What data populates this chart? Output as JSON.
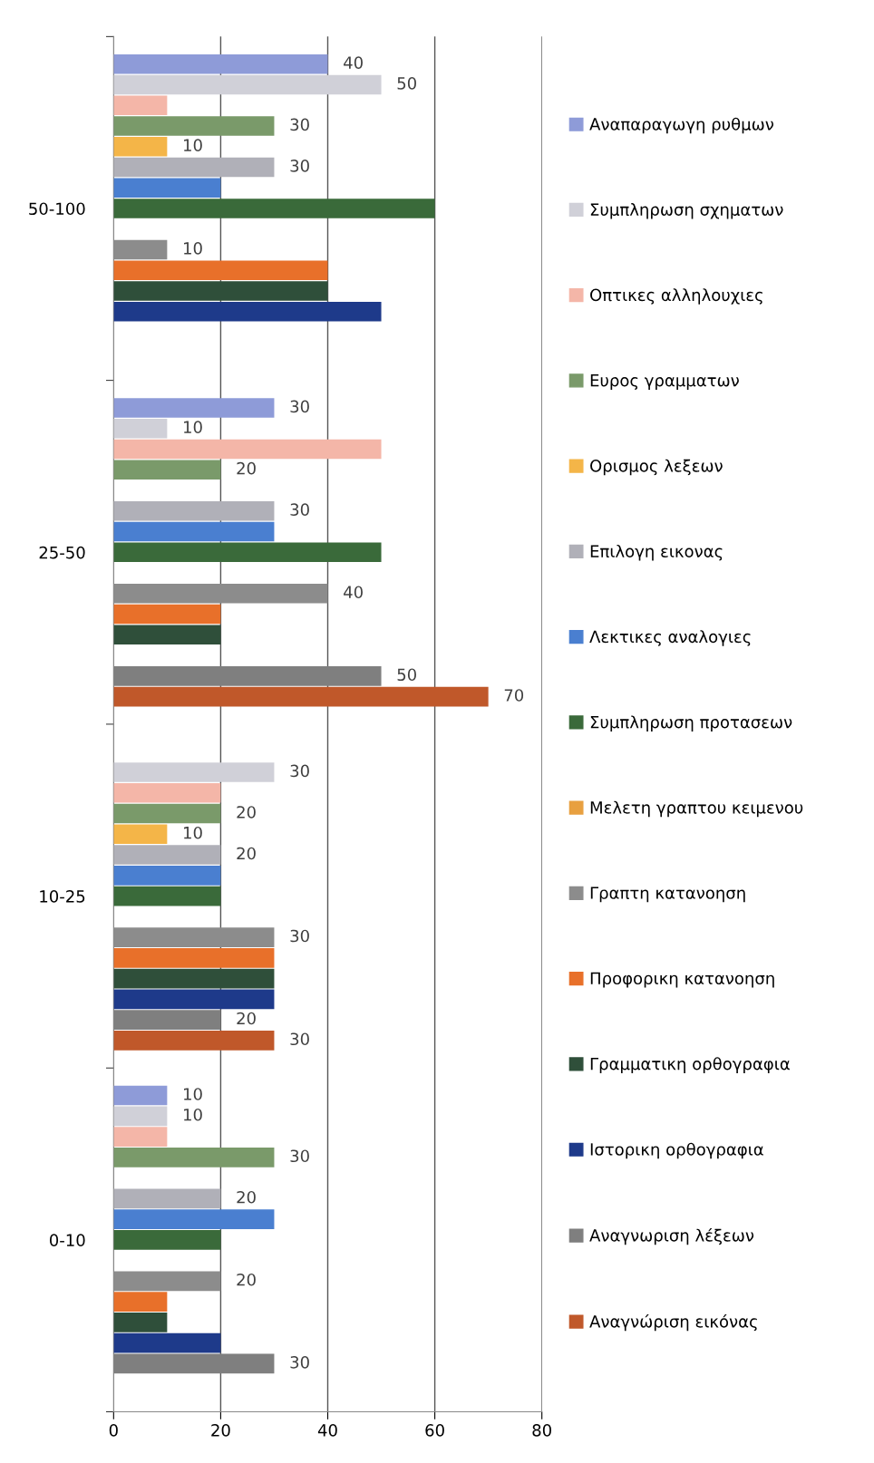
{
  "chart_data": {
    "type": "bar",
    "orientation": "horizontal",
    "categories": [
      "50-100",
      "25-50",
      "10-25",
      "0-10"
    ],
    "xlim": [
      0,
      80
    ],
    "xticks": [
      0,
      20,
      40,
      60,
      80
    ],
    "grid": "x",
    "legend": "right",
    "series": [
      {
        "name": "Αναπαραγωγη ρυθμων",
        "color": "#8e9bd8",
        "values": [
          40,
          30,
          null,
          10
        ],
        "value_labels": [
          "40",
          "30",
          null,
          "10"
        ]
      },
      {
        "name": "Συμπληρωση σχηματων",
        "color": "#d0d0d8",
        "values": [
          50,
          10,
          30,
          10
        ],
        "value_labels": [
          "50",
          "10",
          "30",
          "10"
        ]
      },
      {
        "name": "Οπτικες αλληλουχιες",
        "color": "#f4b6a8",
        "values": [
          10,
          50,
          20,
          10
        ],
        "value_labels": [
          null,
          null,
          null,
          null
        ]
      },
      {
        "name": "Ευρος γραμματων",
        "color": "#7a9a6a",
        "values": [
          30,
          20,
          20,
          30
        ],
        "value_labels": [
          "30",
          "20",
          "20",
          "30"
        ]
      },
      {
        "name": "Ορισμος λεξεων",
        "color": "#f4b548",
        "values": [
          10,
          null,
          10,
          null
        ],
        "value_labels": [
          "10",
          null,
          "10",
          null
        ]
      },
      {
        "name": "Επιλογη εικονας",
        "color": "#b0b0b8",
        "values": [
          30,
          30,
          20,
          20
        ],
        "value_labels": [
          "30",
          "30",
          "20",
          "20"
        ]
      },
      {
        "name": "Λεκτικες αναλογιες",
        "color": "#4a7fd0",
        "values": [
          20,
          30,
          20,
          30
        ],
        "value_labels": [
          null,
          null,
          null,
          null
        ]
      },
      {
        "name": "Συμπληρωση προτασεων",
        "color": "#3a6a3a",
        "values": [
          60,
          50,
          20,
          20
        ],
        "value_labels": [
          null,
          null,
          null,
          null
        ]
      },
      {
        "name": "Μελετη γραπτου κειμενου",
        "color": "#e8a040",
        "values": [
          null,
          null,
          null,
          null
        ],
        "value_labels": [
          null,
          null,
          null,
          null
        ]
      },
      {
        "name": "Γραπτη κατανοηση",
        "color": "#8c8c8c",
        "values": [
          10,
          40,
          30,
          20
        ],
        "value_labels": [
          "10",
          "40",
          "30",
          "20"
        ]
      },
      {
        "name": "Προφορικη κατανοηση",
        "color": "#e8702a",
        "values": [
          40,
          20,
          30,
          10
        ],
        "value_labels": [
          null,
          null,
          null,
          null
        ]
      },
      {
        "name": "Γραμματικη ορθογραφια",
        "color": "#2f4f3a",
        "values": [
          40,
          20,
          30,
          10
        ],
        "value_labels": [
          null,
          null,
          null,
          null
        ]
      },
      {
        "name": "Ιστορικη ορθογραφια",
        "color": "#1e3a8a",
        "values": [
          50,
          null,
          30,
          20
        ],
        "value_labels": [
          null,
          null,
          null,
          null
        ]
      },
      {
        "name": "Αναγνωριση λέξεων",
        "color": "#7f7f7f",
        "values": [
          null,
          50,
          20,
          30
        ],
        "value_labels": [
          null,
          "50",
          "20",
          "30"
        ]
      },
      {
        "name": "Αναγνώριση εικόνας",
        "color": "#c0582a",
        "values": [
          null,
          70,
          30,
          null
        ],
        "value_labels": [
          null,
          "70",
          "30",
          null
        ]
      }
    ]
  }
}
